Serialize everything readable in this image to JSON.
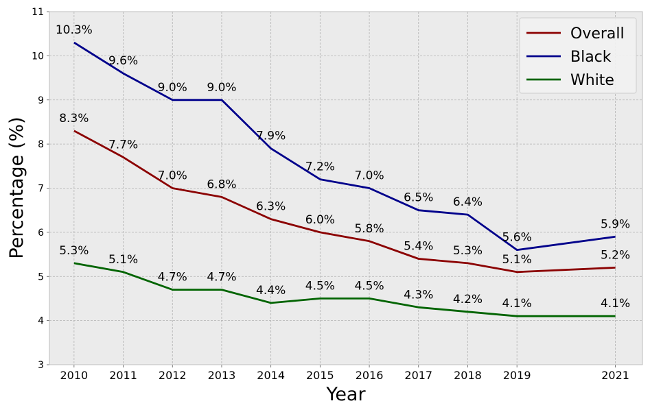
{
  "chart_data": {
    "type": "line",
    "title": "",
    "xlabel": "Year",
    "ylabel": "Percentage (%)",
    "x": [
      2010,
      2011,
      2012,
      2013,
      2014,
      2015,
      2016,
      2017,
      2018,
      2019,
      2021
    ],
    "x_tick_labels": [
      "2010",
      "2011",
      "2012",
      "2013",
      "2014",
      "2015",
      "2016",
      "2017",
      "2018",
      "2019",
      "2021"
    ],
    "ylim": [
      3,
      11
    ],
    "y_ticks": [
      3,
      4,
      5,
      6,
      7,
      8,
      9,
      10,
      11
    ],
    "grid": true,
    "legend_position": "top-right",
    "series": [
      {
        "name": "Overall",
        "color": "#8b0000",
        "values": [
          8.3,
          7.7,
          7.0,
          6.8,
          6.3,
          6.0,
          5.8,
          5.4,
          5.3,
          5.1,
          5.2
        ],
        "labels": [
          "8.3%",
          "7.7%",
          "7.0%",
          "6.8%",
          "6.3%",
          "6.0%",
          "5.8%",
          "5.4%",
          "5.3%",
          "5.1%",
          "5.2%"
        ]
      },
      {
        "name": "Black",
        "color": "#00008b",
        "values": [
          10.3,
          9.6,
          9.0,
          9.0,
          7.9,
          7.2,
          7.0,
          6.5,
          6.4,
          5.6,
          5.9
        ],
        "labels": [
          "10.3%",
          "9.6%",
          "9.0%",
          "9.0%",
          "7.9%",
          "7.2%",
          "7.0%",
          "6.5%",
          "6.4%",
          "5.6%",
          "5.9%"
        ]
      },
      {
        "name": "White",
        "color": "#006400",
        "values": [
          5.3,
          5.1,
          4.7,
          4.7,
          4.4,
          4.5,
          4.5,
          4.3,
          4.2,
          4.1,
          4.1
        ],
        "labels": [
          "5.3%",
          "5.1%",
          "4.7%",
          "4.7%",
          "4.4%",
          "4.5%",
          "4.5%",
          "4.3%",
          "4.2%",
          "4.1%",
          "4.1%"
        ]
      }
    ]
  }
}
